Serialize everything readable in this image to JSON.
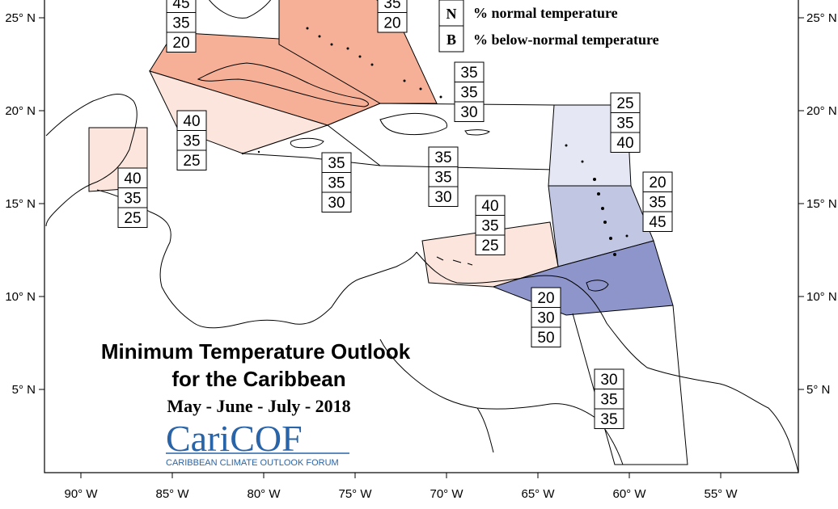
{
  "title": {
    "line1": "Minimum Temperature Outlook",
    "line2": "for the Caribbean",
    "period": "May - June - July - 2018"
  },
  "logo": {
    "name": "CariCOF",
    "subtitle": "CARIBBEAN CLIMATE OUTLOOK FORUM"
  },
  "legend": [
    {
      "key": "N",
      "label": "% normal temperature"
    },
    {
      "key": "B",
      "label": "% below-normal temperature"
    }
  ],
  "axes": {
    "x_ticks": [
      "90° W",
      "85° W",
      "80° W",
      "75° W",
      "70° W",
      "65° W",
      "60° W",
      "55° W"
    ],
    "y_ticks": [
      "25° N",
      "20° N",
      "15° N",
      "10° N",
      "5° N"
    ]
  },
  "colors": {
    "above_35": "#f7c8b3",
    "above_40": "#f5b097",
    "above_45": "#f2a283",
    "above_slight": "#fbe5dc",
    "below_40": "#e5e8f4",
    "below_45": "#c1c6e3",
    "below_50": "#8d95cb",
    "neutral": "#ffffff"
  },
  "regions": [
    {
      "id": "bahamas-north",
      "values": [
        "45",
        "35",
        "20"
      ]
    },
    {
      "id": "bahamas-east",
      "values": [
        "35",
        "20"
      ]
    },
    {
      "id": "turks-caicos",
      "values": [
        "35",
        "35",
        "30"
      ]
    },
    {
      "id": "cayman",
      "values": [
        "40",
        "35",
        "25"
      ]
    },
    {
      "id": "belize",
      "values": [
        "40",
        "35",
        "25"
      ]
    },
    {
      "id": "jamaica",
      "values": [
        "35",
        "35",
        "30"
      ]
    },
    {
      "id": "hispaniola",
      "values": [
        "35",
        "35",
        "30"
      ]
    },
    {
      "id": "leeward-islands",
      "values": [
        "25",
        "35",
        "40"
      ]
    },
    {
      "id": "windward-islands",
      "values": [
        "20",
        "35",
        "45"
      ]
    },
    {
      "id": "abc-islands",
      "values": [
        "40",
        "35",
        "25"
      ]
    },
    {
      "id": "trinidad",
      "values": [
        "20",
        "30",
        "50"
      ]
    },
    {
      "id": "guianas",
      "values": [
        "30",
        "35",
        "35"
      ]
    }
  ]
}
